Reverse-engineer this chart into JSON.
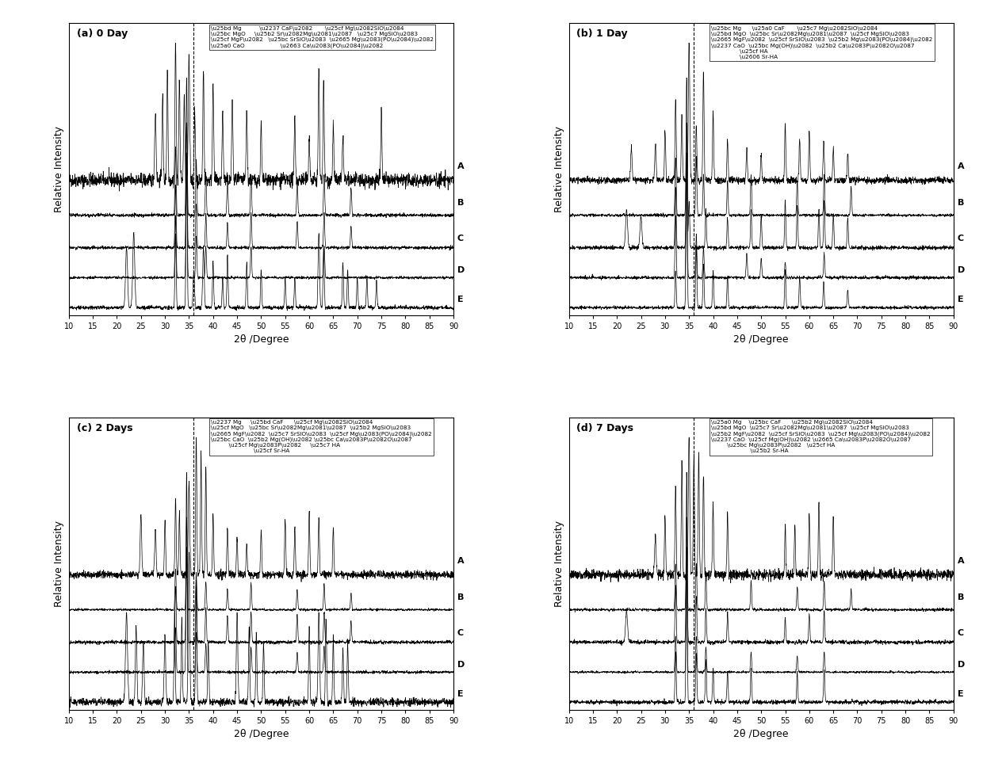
{
  "xlim": [
    10,
    90
  ],
  "xticks": [
    10,
    15,
    20,
    25,
    30,
    35,
    40,
    45,
    50,
    55,
    60,
    65,
    70,
    75,
    80,
    85,
    90
  ],
  "xlabel": "2θ /Degree",
  "ylabel": "Relative Intensity",
  "panel_labels": [
    "(a) 0 Day",
    "(b) 1 Day",
    "(c) 2 Days",
    "(d) 7 Days"
  ],
  "curve_labels": [
    "A",
    "B",
    "C",
    "D",
    "E"
  ],
  "offsets": [
    0.52,
    0.38,
    0.25,
    0.13,
    0.01
  ],
  "seed": 42,
  "vline_x": 36.0,
  "legend_a": [
    "\\u25bd Mg          \\u2237 CaF\\u2082       \\u25cf Mg\\u2082SiO\\u2084",
    "\\u25bc MgO     \\u25b2 Sr\\u2082Mg\\u2081\\u2087   \\u25c7 MgSiO\\u2083",
    "\\u25cf MgF\\u2082   \\u25bc SrSiO\\u2083  \\u2665 Mg\\u2083(PO\\u2084)\\u2082",
    "\\u25a0 CaO                    \\u2663 Ca\\u2083(PO\\u2084)\\u2082"
  ],
  "legend_b": [
    "\\u25bc Mg      \\u25a0 CaF       \\u25c7 Mg\\u2082SiO\\u2084",
    "\\u25bd MgO  \\u25bc Sr\\u2082Mg\\u2081\\u2087  \\u25cf MgSiO\\u2083",
    "\\u2665 MgF\\u2082  \\u25cf SrSiO\\u2083  \\u25b2 Mg\\u2083(PO\\u2084)\\u2082",
    "\\u2237 CaO  \\u25bc Mg(OH)\\u2082  \\u25b2 Ca\\u2083P\\u2082O\\u2087",
    "                \\u25cf HA",
    "                \\u2606 Sr-HA"
  ],
  "legend_c": [
    "\\u2237 Mg     \\u25bd CaF      \\u25cf Mg\\u2082SiO\\u2084",
    "\\u25cf MgO   \\u25bc Sr\\u2082Mg\\u2081\\u2087  \\u25b2 MgSiO\\u2083",
    "\\u2665 MgF\\u2082  \\u25c7 SrSiO\\u2083  \\u25cf Mg\\u2083(PO\\u2084)\\u2082",
    "\\u25bc CaO  \\u25b2 Mg(OH)\\u2082 \\u25bc Ca\\u2083P\\u2082O\\u2087",
    "          \\u25cf Mg\\u2083P\\u2082     \\u25c7 HA",
    "                        \\u25cf Sr-HA"
  ],
  "legend_d": [
    "\\u25a0 Mg    \\u25bc CaF      \\u25b2 Mg\\u2082SiO\\u2084",
    "\\u25bd MgO  \\u25c7 Sr\\u2082Mg\\u2081\\u2087  \\u25cf MgSiO\\u2083",
    "\\u25b2 MgF\\u2082  \\u25cf SrSiO\\u2083  \\u25cf Mg\\u2083(PO\\u2084)\\u2082",
    "\\u2237 CaO  \\u25cf Mg(OH)\\u2082 \\u2665 Ca\\u2083P\\u2082O\\u2087",
    "         \\u25bc Mg\\u2083P\\u2082   \\u25cf HA",
    "                      \\u25b2 Sr-HA"
  ]
}
